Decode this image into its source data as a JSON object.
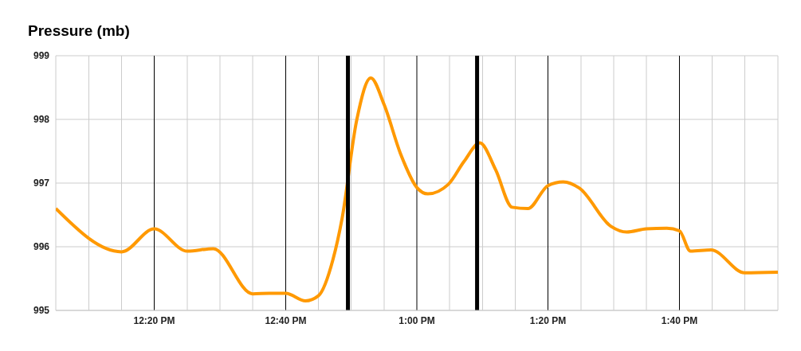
{
  "chart_data": {
    "type": "line",
    "title": "Pressure (mb)",
    "x": [
      12.083,
      12.25,
      12.333,
      12.417,
      12.483,
      12.583,
      12.625,
      12.667,
      12.717,
      12.75,
      12.787,
      12.81,
      12.847,
      12.883,
      12.917,
      12.958,
      13.0,
      13.028,
      13.08,
      13.12,
      13.16,
      13.2,
      13.242,
      13.282,
      13.333,
      13.372,
      13.413,
      13.493,
      13.533,
      13.583,
      13.635,
      13.667,
      13.695,
      13.747,
      13.833,
      13.917
    ],
    "series": [
      {
        "color": "#ff9900",
        "values": [
          996.6,
          995.92,
          996.28,
          995.93,
          995.97,
          995.26,
          995.27,
          995.27,
          995.15,
          995.23,
          995.8,
          996.44,
          997.98,
          998.65,
          998.23,
          997.47,
          996.93,
          996.83,
          996.98,
          997.34,
          997.63,
          997.21,
          996.62,
          996.6,
          996.96,
          997.02,
          996.92,
          996.32,
          996.23,
          996.28,
          996.29,
          996.25,
          995.93,
          995.95,
          995.59,
          995.6
        ]
      }
    ],
    "xlim": [
      12.083,
      13.917
    ],
    "xticks": [
      {
        "value": 12.167,
        "label": null
      },
      {
        "value": 12.25,
        "label": null
      },
      {
        "value": 12.333,
        "label": "12:20 PM"
      },
      {
        "value": 12.417,
        "label": null
      },
      {
        "value": 12.5,
        "label": null
      },
      {
        "value": 12.583,
        "label": null
      },
      {
        "value": 12.667,
        "label": "12:40 PM"
      },
      {
        "value": 12.75,
        "label": null
      },
      {
        "value": 12.833,
        "label": null
      },
      {
        "value": 12.917,
        "label": null
      },
      {
        "value": 13.0,
        "label": "1:00 PM"
      },
      {
        "value": 13.083,
        "label": null
      },
      {
        "value": 13.167,
        "label": null
      },
      {
        "value": 13.25,
        "label": null
      },
      {
        "value": 13.333,
        "label": "1:20 PM"
      },
      {
        "value": 13.417,
        "label": null
      },
      {
        "value": 13.5,
        "label": null
      },
      {
        "value": 13.583,
        "label": null
      },
      {
        "value": 13.667,
        "label": "1:40 PM"
      },
      {
        "value": 13.75,
        "label": null
      },
      {
        "value": 13.833,
        "label": null
      }
    ],
    "ylim": [
      995,
      999
    ],
    "yticks": [
      995,
      996,
      997,
      998,
      999
    ],
    "grid": true,
    "marker": "none",
    "line_style": "solid",
    "ref_lines": [
      {
        "axis": "x",
        "value": 12.825,
        "color": "#000000"
      },
      {
        "axis": "x",
        "value": 13.153,
        "color": "#000000"
      }
    ]
  }
}
